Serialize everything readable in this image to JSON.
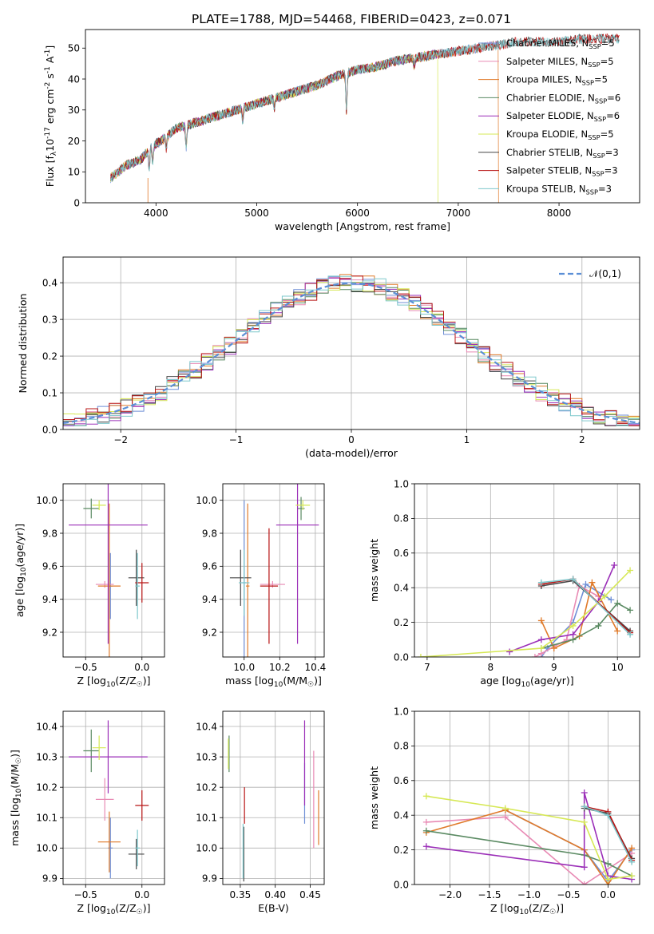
{
  "figure_title": "PLATE=1788, MJD=54468, FIBERID=0423, z=0.071",
  "palette": {
    "chab_miles": "#6f8fd6",
    "salp_miles": "#e88ab4",
    "krou_miles": "#e07a2a",
    "chab_elodie": "#5a8a62",
    "salp_elodie": "#9b2fb8",
    "krou_elodie": "#d6e855",
    "chab_stelib": "#474747",
    "salp_stelib": "#b81414",
    "krou_stelib": "#7ec8cc",
    "normal": "#5b8fd6"
  },
  "chart_data": [
    {
      "id": "spectrum",
      "type": "line",
      "xlabel": "wavelength [Angstrom, rest frame]",
      "ylabel": "Flux [f$_\\lambda$10$^{-17}$ erg cm$^{-2}$ s$^{-1}$ A$^{-1}$]",
      "xlim": [
        3300,
        8800
      ],
      "ylim": [
        0,
        56
      ],
      "xticks": [
        4000,
        5000,
        6000,
        7000,
        8000
      ],
      "yticks": [
        0,
        10,
        20,
        30,
        40,
        50
      ],
      "grid": false,
      "legend": "upper right",
      "continuum": {
        "x": [
          3550,
          3700,
          3850,
          3950,
          4050,
          4200,
          4400,
          4600,
          4800,
          5000,
          5200,
          5400,
          5600,
          5800,
          6000,
          6200,
          6400,
          6600,
          6800,
          7000,
          7200,
          7400,
          7600,
          7800,
          8000,
          8200,
          8400,
          8800
        ],
        "y": [
          8,
          12,
          14,
          18,
          20,
          24,
          26,
          28,
          30,
          32,
          34,
          36,
          38,
          41,
          43,
          44,
          46,
          47,
          48,
          49,
          50,
          51,
          52,
          52,
          52,
          53,
          53,
          53
        ]
      },
      "absorption": [
        {
          "x": 3933,
          "depth": 6
        },
        {
          "x": 3968,
          "depth": 5
        },
        {
          "x": 4102,
          "depth": 4
        },
        {
          "x": 4300,
          "depth": 7
        },
        {
          "x": 4861,
          "depth": 4
        },
        {
          "x": 5175,
          "depth": 3
        },
        {
          "x": 5890,
          "depth": 12
        },
        {
          "x": 6563,
          "depth": 3
        }
      ],
      "series": [
        {
          "name": "Chabrier MILES, N$_{SSP}$=5",
          "key": "chab_miles",
          "xmax": 7400,
          "drop": null
        },
        {
          "name": "Salpeter MILES, N$_{SSP}$=5",
          "key": "salp_miles",
          "xmax": 7400,
          "drop": null
        },
        {
          "name": "Kroupa MILES, N$_{SSP}$=5",
          "key": "krou_miles",
          "xmax": 7400,
          "drop": 7400
        },
        {
          "name": "Chabrier ELODIE, N$_{SSP}$=6",
          "key": "chab_elodie",
          "xmax": 6800,
          "drop": null
        },
        {
          "name": "Salpeter ELODIE, N$_{SSP}$=6",
          "key": "salp_elodie",
          "xmax": 6800,
          "drop": null
        },
        {
          "name": "Kroupa ELODIE, N$_{SSP}$=5",
          "key": "krou_elodie",
          "xmax": 6800,
          "drop": 6800
        },
        {
          "name": "Chabrier STELIB, N$_{SSP}$=3",
          "key": "chab_stelib",
          "xmax": 8600,
          "drop": null
        },
        {
          "name": "Salpeter STELIB, N$_{SSP}$=3",
          "key": "salp_stelib",
          "xmax": 8600,
          "drop": null
        },
        {
          "name": "Kroupa STELIB, N$_{SSP}$=3",
          "key": "krou_stelib",
          "xmax": 8600,
          "drop": null
        }
      ]
    },
    {
      "id": "residuals",
      "type": "histogram",
      "xlabel": "(data-model)/error",
      "ylabel": "Normed distribution",
      "xlim": [
        -2.5,
        2.5
      ],
      "ylim": [
        0,
        0.47
      ],
      "xticks": [
        -2,
        -1,
        0,
        1,
        2
      ],
      "yticks": [
        0.0,
        0.1,
        0.2,
        0.3,
        0.4
      ],
      "grid": true,
      "legend": "upper right",
      "normal_label": "$\\mathcal{N}(0,1)$",
      "bin_width": 0.1,
      "series_keys": [
        "chab_miles",
        "salp_miles",
        "krou_miles",
        "chab_elodie",
        "salp_elodie",
        "krou_elodie",
        "chab_stelib",
        "salp_stelib",
        "krou_stelib"
      ]
    },
    {
      "id": "z_age",
      "type": "errorbar",
      "xlabel": "Z [log$_{10}$(Z/Z$_\\odot$)]",
      "ylabel": "age  [log$_{10}$(age/yr)]",
      "xlim": [
        -0.7,
        0.2
      ],
      "ylim": [
        9.05,
        10.1
      ],
      "xticks": [
        -0.5,
        0.0
      ],
      "yticks": [
        9.2,
        9.4,
        9.6,
        9.8,
        10.0
      ],
      "grid": true,
      "points": [
        {
          "key": "chab_miles",
          "x": -0.28,
          "xerr": 0.02,
          "y": 9.48,
          "yerr": 0.2
        },
        {
          "key": "salp_miles",
          "x": -0.33,
          "xerr": 0.08,
          "y": 9.49,
          "yerr": 0.02
        },
        {
          "key": "krou_miles",
          "x": -0.29,
          "xerr": 0.1,
          "y": 9.48,
          "yerr": 0.5
        },
        {
          "key": "chab_elodie",
          "x": -0.45,
          "xerr": 0.07,
          "y": 9.95,
          "yerr": 0.06
        },
        {
          "key": "salp_elodie",
          "x": -0.3,
          "xerr": 0.35,
          "y": 9.85,
          "yerr": 0.72
        },
        {
          "key": "krou_elodie",
          "x": -0.38,
          "xerr": 0.06,
          "y": 9.97,
          "yerr": 0.03
        },
        {
          "key": "chab_stelib",
          "x": -0.05,
          "xerr": 0.07,
          "y": 9.53,
          "yerr": 0.17
        },
        {
          "key": "salp_stelib",
          "x": 0.0,
          "xerr": 0.06,
          "y": 9.5,
          "yerr": 0.12
        },
        {
          "key": "krou_stelib",
          "x": -0.04,
          "xerr": 0.02,
          "y": 9.48,
          "yerr": 0.2
        }
      ]
    },
    {
      "id": "mass_age",
      "type": "errorbar",
      "xlabel": "mass [log$_{10}$(M/M$_\\odot$)]",
      "xlim": [
        9.88,
        10.45
      ],
      "ylim": [
        9.05,
        10.1
      ],
      "xticks": [
        10.0,
        10.2,
        10.4
      ],
      "yticks": [
        9.2,
        9.4,
        9.6,
        9.8,
        10.0
      ],
      "grid": true,
      "points": [
        {
          "key": "chab_miles",
          "x": 10.0,
          "xerr": 0.01,
          "y": 9.5,
          "yerr": 0.5
        },
        {
          "key": "salp_miles",
          "x": 10.16,
          "xerr": 0.07,
          "y": 9.49,
          "yerr": 0.02
        },
        {
          "key": "krou_miles",
          "x": 10.02,
          "xerr": 0.01,
          "y": 9.48,
          "yerr": 0.5
        },
        {
          "key": "chab_elodie",
          "x": 10.32,
          "xerr": 0.02,
          "y": 9.95,
          "yerr": 0.07
        },
        {
          "key": "salp_elodie",
          "x": 10.3,
          "xerr": 0.12,
          "y": 9.85,
          "yerr": 0.72
        },
        {
          "key": "krou_elodie",
          "x": 10.33,
          "xerr": 0.04,
          "y": 9.97,
          "yerr": 0.03
        },
        {
          "key": "chab_stelib",
          "x": 9.98,
          "xerr": 0.06,
          "y": 9.53,
          "yerr": 0.17
        },
        {
          "key": "salp_stelib",
          "x": 10.14,
          "xerr": 0.05,
          "y": 9.48,
          "yerr": 0.35
        },
        {
          "key": "krou_stelib",
          "x": 10.0,
          "xerr": 0.03,
          "y": 9.5,
          "yerr": 0.2
        }
      ]
    },
    {
      "id": "age_weight",
      "type": "line",
      "xlabel": "age  [log$_{10}$(age/yr)]",
      "ylabel": "mass weight",
      "xlim": [
        6.8,
        10.35
      ],
      "ylim": [
        0,
        1.0
      ],
      "xticks": [
        7,
        8,
        9,
        10
      ],
      "yticks": [
        0.0,
        0.2,
        0.4,
        0.6,
        0.8,
        1.0
      ],
      "grid": true,
      "series": [
        {
          "key": "chab_miles",
          "x": [
            8.8,
            8.9,
            9.3,
            9.5,
            9.9
          ],
          "y": [
            0.0,
            0.05,
            0.2,
            0.42,
            0.33
          ]
        },
        {
          "key": "salp_miles",
          "x": [
            8.7,
            8.8,
            9.2,
            9.4,
            9.7
          ],
          "y": [
            0.0,
            0.02,
            0.1,
            0.41,
            0.35
          ]
        },
        {
          "key": "krou_miles",
          "x": [
            8.8,
            9.0,
            9.4,
            9.6,
            10.0
          ],
          "y": [
            0.21,
            0.05,
            0.12,
            0.43,
            0.15
          ]
        },
        {
          "key": "chab_elodie",
          "x": [
            8.8,
            9.3,
            9.7,
            10.0,
            10.2
          ],
          "y": [
            0.05,
            0.1,
            0.18,
            0.31,
            0.27
          ]
        },
        {
          "key": "salp_elodie",
          "x": [
            8.3,
            8.8,
            9.3,
            9.7,
            9.95
          ],
          "y": [
            0.03,
            0.1,
            0.13,
            0.32,
            0.53
          ]
        },
        {
          "key": "krou_elodie",
          "x": [
            6.9,
            8.8,
            9.3,
            9.8,
            10.2
          ],
          "y": [
            0.0,
            0.05,
            0.18,
            0.35,
            0.5
          ]
        },
        {
          "key": "chab_stelib",
          "x": [
            8.8,
            9.3,
            10.2
          ],
          "y": [
            0.41,
            0.44,
            0.15
          ]
        },
        {
          "key": "salp_stelib",
          "x": [
            8.8,
            9.3,
            10.2
          ],
          "y": [
            0.42,
            0.45,
            0.14
          ]
        },
        {
          "key": "krou_stelib",
          "x": [
            8.8,
            9.3,
            10.2
          ],
          "y": [
            0.43,
            0.45,
            0.13
          ]
        }
      ]
    },
    {
      "id": "z_mass",
      "type": "errorbar",
      "xlabel": "Z [log$_{10}$(Z/Z$_\\odot$)]",
      "ylabel": "mass [log$_{10}$(M/M$_\\odot$)]",
      "xlim": [
        -0.7,
        0.2
      ],
      "ylim": [
        9.88,
        10.45
      ],
      "xticks": [
        -0.5,
        0.0
      ],
      "yticks": [
        9.9,
        10.0,
        10.1,
        10.2,
        10.3,
        10.4
      ],
      "grid": true,
      "points": [
        {
          "key": "chab_miles",
          "x": -0.28,
          "xerr": 0.02,
          "y": 10.0,
          "yerr": 0.1
        },
        {
          "key": "salp_miles",
          "x": -0.33,
          "xerr": 0.08,
          "y": 10.16,
          "yerr": 0.07
        },
        {
          "key": "krou_miles",
          "x": -0.29,
          "xerr": 0.1,
          "y": 10.02,
          "yerr": 0.1
        },
        {
          "key": "chab_elodie",
          "x": -0.45,
          "xerr": 0.07,
          "y": 10.32,
          "yerr": 0.07
        },
        {
          "key": "salp_elodie",
          "x": -0.3,
          "xerr": 0.35,
          "y": 10.3,
          "yerr": 0.12
        },
        {
          "key": "krou_elodie",
          "x": -0.38,
          "xerr": 0.06,
          "y": 10.33,
          "yerr": 0.04
        },
        {
          "key": "chab_stelib",
          "x": -0.05,
          "xerr": 0.07,
          "y": 9.98,
          "yerr": 0.05
        },
        {
          "key": "salp_stelib",
          "x": 0.0,
          "xerr": 0.06,
          "y": 10.14,
          "yerr": 0.05
        },
        {
          "key": "krou_stelib",
          "x": -0.04,
          "xerr": 0.02,
          "y": 10.0,
          "yerr": 0.06
        }
      ]
    },
    {
      "id": "ebv_mass",
      "type": "errorbar",
      "xlabel": "E(B-V)",
      "xlim": [
        0.325,
        0.47
      ],
      "ylim": [
        9.88,
        10.45
      ],
      "xticks": [
        0.35,
        0.4,
        0.45
      ],
      "yticks": [
        9.9,
        10.0,
        10.1,
        10.2,
        10.3,
        10.4
      ],
      "grid": true,
      "points": [
        {
          "key": "chab_miles",
          "x": 0.442,
          "y": 10.18,
          "yerr": 0.1
        },
        {
          "key": "salp_miles",
          "x": 0.455,
          "y": 10.16,
          "yerr": 0.16
        },
        {
          "key": "krou_miles",
          "x": 0.462,
          "y": 10.1,
          "yerr": 0.09
        },
        {
          "key": "chab_elodie",
          "x": 0.334,
          "y": 10.31,
          "yerr": 0.06
        },
        {
          "key": "salp_elodie",
          "x": 0.442,
          "y": 10.28,
          "yerr": 0.14
        },
        {
          "key": "krou_elodie",
          "x": 0.333,
          "y": 10.31,
          "yerr": 0.05
        },
        {
          "key": "chab_stelib",
          "x": 0.355,
          "y": 9.98,
          "yerr": 0.09
        },
        {
          "key": "salp_stelib",
          "x": 0.356,
          "y": 10.14,
          "yerr": 0.06
        },
        {
          "key": "krou_stelib",
          "x": 0.354,
          "y": 9.99,
          "yerr": 0.09
        }
      ]
    },
    {
      "id": "z_weight",
      "type": "line",
      "xlabel": "Z [log$_{10}$(Z/Z$_\\odot$)]",
      "ylabel": "mass weight",
      "xlim": [
        -2.45,
        0.4
      ],
      "ylim": [
        0,
        1.0
      ],
      "xticks": [
        -2.0,
        -1.5,
        -1.0,
        -0.5,
        0.0
      ],
      "yticks": [
        0.0,
        0.2,
        0.4,
        0.6,
        0.8,
        1.0
      ],
      "grid": true,
      "series": [
        {
          "key": "chab_miles",
          "x": [
            -1.3,
            -0.3,
            0.0,
            0.3
          ],
          "y": [
            0.43,
            0.2,
            0.02,
            0.2
          ]
        },
        {
          "key": "salp_miles",
          "x": [
            -2.3,
            -1.3,
            -0.3,
            0.3
          ],
          "y": [
            0.36,
            0.39,
            0.0,
            0.18
          ]
        },
        {
          "key": "krou_miles",
          "x": [
            -2.3,
            -1.3,
            -0.3,
            0.0,
            0.3
          ],
          "y": [
            0.3,
            0.43,
            0.2,
            0.0,
            0.21
          ]
        },
        {
          "key": "chab_elodie",
          "x": [
            -2.3,
            -0.3,
            0.0,
            0.3
          ],
          "y": [
            0.31,
            0.17,
            0.12,
            0.05
          ]
        },
        {
          "key": "salp_elodie",
          "x": [
            -2.3,
            -0.3,
            -0.3,
            0.0,
            0.3
          ],
          "y": [
            0.22,
            0.1,
            0.53,
            0.05,
            0.03
          ]
        },
        {
          "key": "krou_elodie",
          "x": [
            -2.3,
            -1.3,
            -0.3,
            0.0,
            0.3
          ],
          "y": [
            0.51,
            0.44,
            0.36,
            0.03,
            0.05
          ]
        },
        {
          "key": "chab_stelib",
          "x": [
            -0.3,
            0.0,
            0.3
          ],
          "y": [
            0.44,
            0.41,
            0.15
          ]
        },
        {
          "key": "salp_stelib",
          "x": [
            -0.3,
            0.0,
            0.3
          ],
          "y": [
            0.45,
            0.42,
            0.14
          ]
        },
        {
          "key": "krou_stelib",
          "x": [
            -0.3,
            0.0,
            0.3
          ],
          "y": [
            0.45,
            0.4,
            0.13
          ]
        }
      ]
    }
  ]
}
